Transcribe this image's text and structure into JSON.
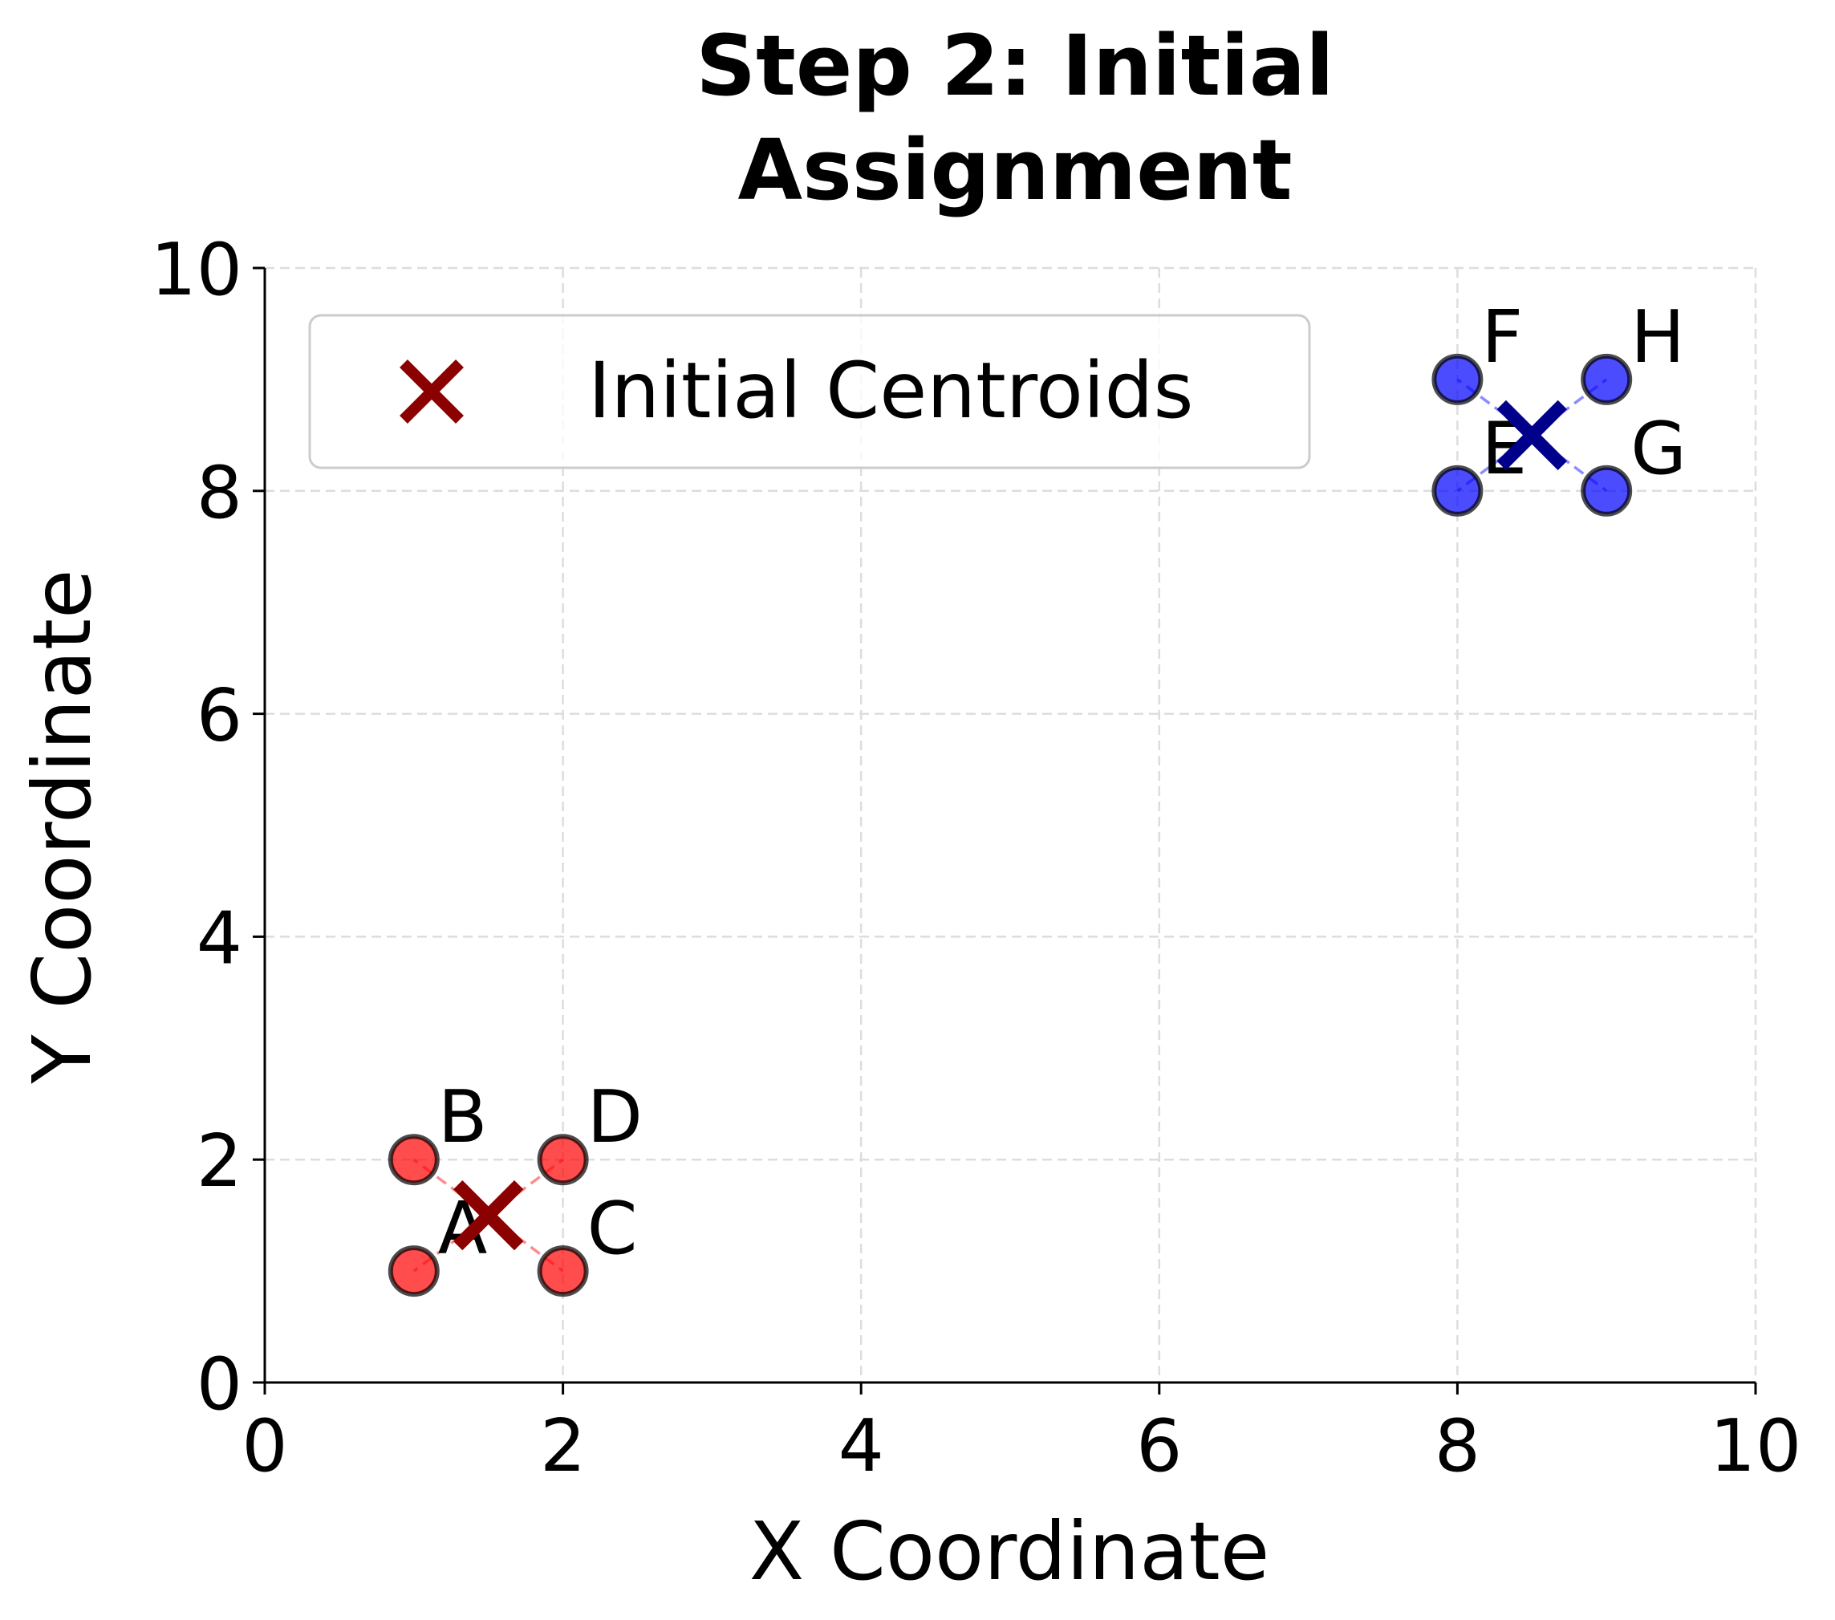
{
  "chart_data": {
    "type": "scatter",
    "title": "Step 2: Initial\nAssignment",
    "title_lines": [
      "Step 2: Initial",
      "Assignment"
    ],
    "xlabel": "X Coordinate",
    "ylabel": "Y Coordinate",
    "xlim": [
      0,
      10
    ],
    "ylim": [
      0,
      10
    ],
    "xticks": [
      "0",
      "2",
      "4",
      "6",
      "8",
      "10"
    ],
    "yticks": [
      "0",
      "2",
      "4",
      "6",
      "8",
      "10"
    ],
    "grid": true,
    "legend": {
      "position": "top-left",
      "entries": [
        "Initial Centroids"
      ]
    },
    "clusters": [
      {
        "color": "#ff0000",
        "points": [
          {
            "label": "A",
            "x": 1,
            "y": 1
          },
          {
            "label": "B",
            "x": 1,
            "y": 2
          },
          {
            "label": "C",
            "x": 2,
            "y": 1
          },
          {
            "label": "D",
            "x": 2,
            "y": 2
          }
        ],
        "centroid": {
          "x": 1.5,
          "y": 1.5,
          "color": "#8b0000"
        }
      },
      {
        "color": "#0000ff",
        "points": [
          {
            "label": "E",
            "x": 8,
            "y": 8
          },
          {
            "label": "F",
            "x": 8,
            "y": 9
          },
          {
            "label": "G",
            "x": 9,
            "y": 8
          },
          {
            "label": "H",
            "x": 9,
            "y": 9
          }
        ],
        "centroid": {
          "x": 8.5,
          "y": 8.5,
          "color": "#00008b"
        }
      }
    ]
  }
}
